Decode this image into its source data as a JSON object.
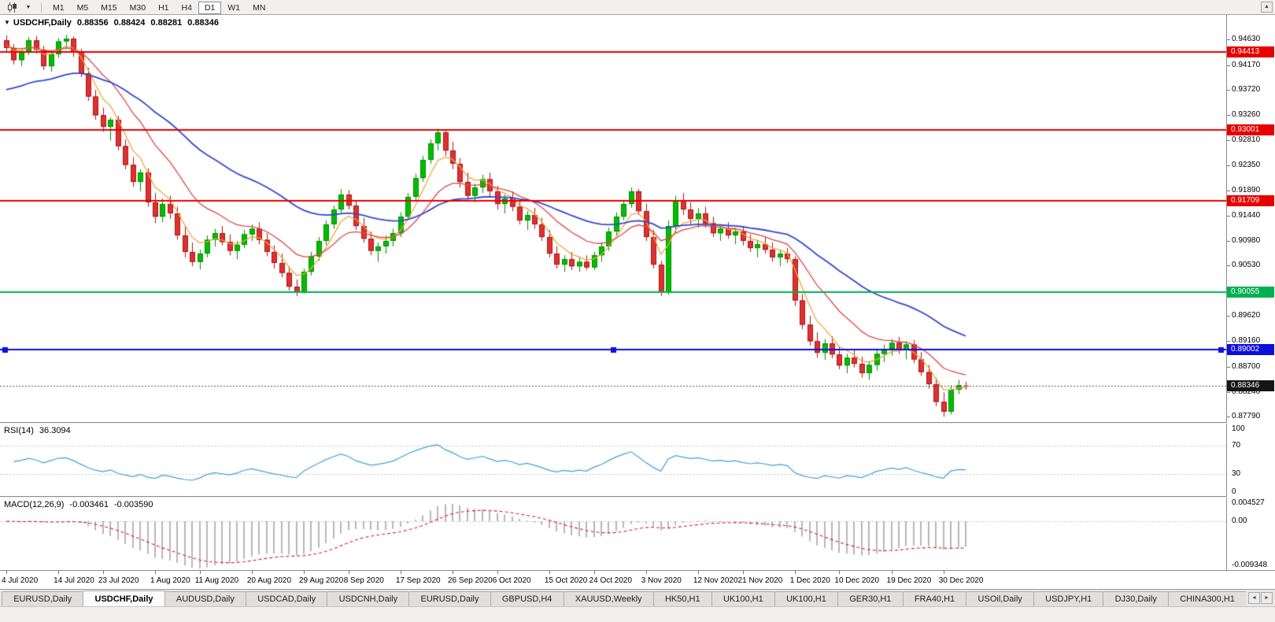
{
  "icons": {
    "collapse_arrow": "▼",
    "dropdown_caret": "▼",
    "scroll_up": "▲",
    "tab_left": "◄",
    "tab_right": "►"
  },
  "toolbar": {
    "timeframes": [
      "M1",
      "M5",
      "M15",
      "M30",
      "H1",
      "H4",
      "D1",
      "W1",
      "MN"
    ],
    "active_timeframe": "D1"
  },
  "header": {
    "symbol": "USDCHF,Daily",
    "open": "0.88356",
    "high": "0.88424",
    "low": "0.88281",
    "close": "0.88346"
  },
  "price_axis": {
    "ticks": [
      "0.94630",
      "0.94170",
      "0.93720",
      "0.93260",
      "0.92810",
      "0.92350",
      "0.91890",
      "0.91440",
      "0.90980",
      "0.90530",
      "0.90070",
      "0.89620",
      "0.89160",
      "0.88700",
      "0.88240",
      "0.87790"
    ]
  },
  "levels": [
    {
      "label": "0.94413",
      "price": 0.94413,
      "color": "#e60000",
      "type": "resistance-line"
    },
    {
      "label": "0.93001",
      "price": 0.93001,
      "color": "#e60000",
      "type": "resistance-line"
    },
    {
      "label": "0.91709",
      "price": 0.91709,
      "color": "#e60000",
      "type": "resistance-line"
    },
    {
      "label": "0.90055",
      "price": 0.90055,
      "color": "#00b050",
      "type": "support-line"
    },
    {
      "label": "0.89002",
      "price": 0.89002,
      "color": "#0d0de0",
      "type": "support-line",
      "selected": true
    }
  ],
  "current_price": {
    "label": "0.88346",
    "price": 0.88346,
    "color": "#151515"
  },
  "time_axis": {
    "dates": [
      "4 Jul 2020",
      "14 Jul 2020",
      "23 Jul 2020",
      "1 Aug 2020",
      "11 Aug 2020",
      "20 Aug 2020",
      "29 Aug 2020",
      "8 Sep 2020",
      "17 Sep 2020",
      "26 Sep 2020",
      "6 Oct 2020",
      "15 Oct 2020",
      "24 Oct 2020",
      "3 Nov 2020",
      "12 Nov 2020",
      "21 Nov 2020",
      "1 Dec 2020",
      "10 Dec 2020",
      "19 Dec 2020",
      "30 Dec 2020"
    ],
    "tick_indices": [
      0,
      7,
      13,
      20,
      26,
      33,
      40,
      46,
      53,
      60,
      66,
      73,
      79,
      86,
      93,
      99,
      106,
      112,
      119,
      126
    ]
  },
  "rsi": {
    "name": "RSI(14)",
    "value": "36.3094",
    "axis_labels": [
      "100",
      "70",
      "30",
      "0"
    ],
    "axis_values": [
      100,
      70,
      30,
      0
    ],
    "levels": [
      70,
      30
    ],
    "line_color": "#42a0dc"
  },
  "macd": {
    "name": "MACD(12,26,9)",
    "value_main": "-0.003461",
    "value_signal": "-0.003590",
    "axis_top": "0.004527",
    "axis_zero": "0.00",
    "axis_bottom": "-0.009348",
    "scale_max": 0.004527,
    "scale_min": -0.009348,
    "bar_color": "#b7b7b7",
    "signal_color": "#e02020"
  },
  "tabs": {
    "items": [
      "EURUSD,Daily",
      "USDCHF,Daily",
      "AUDUSD,Daily",
      "USDCAD,Daily",
      "USDCNH,Daily",
      "EURUSD,Daily",
      "GBPUSD,H4",
      "XAUUSD,Weekly",
      "HK50,H1",
      "UK100,H1",
      "UK100,H1",
      "GER30,H1",
      "FRA40,H1",
      "USOil,Daily",
      "USDJPY,H1",
      "DJ30,Daily",
      "CHINA300,H1"
    ],
    "active_index": 1
  },
  "chart_data": {
    "type": "candlestick",
    "symbol": "USDCHF",
    "period": "Daily",
    "y_range": [
      0.87694,
      0.9508
    ],
    "x_start": 8,
    "x_step": 9.45,
    "up_color": "#00bd00",
    "up_border": "#008f00",
    "down_color": "#e03030",
    "down_border": "#a81616",
    "moving_averages": [
      {
        "name": "ma-fast",
        "period": 5,
        "color": "#eda63c",
        "seed": 0.9455,
        "width": 1.3
      },
      {
        "name": "ma-medium",
        "period": 13,
        "color": "#e04545",
        "seed": 0.9452,
        "width": 1.3
      },
      {
        "name": "ma-slow",
        "period": 34,
        "color": "#3347d1",
        "seed": 0.9368,
        "width": 1.8
      }
    ],
    "indicators": {
      "rsi": {
        "period": 14,
        "current": 36.3094
      },
      "macd": {
        "fast": 12,
        "slow": 26,
        "signal": 9,
        "current_main": -0.003461,
        "current_signal": -0.00359
      }
    },
    "candles": [
      [
        0.9462,
        0.9471,
        0.944,
        0.9448
      ],
      [
        0.9448,
        0.9455,
        0.9418,
        0.9426
      ],
      [
        0.9426,
        0.9446,
        0.9415,
        0.9441
      ],
      [
        0.9441,
        0.9468,
        0.9435,
        0.9462
      ],
      [
        0.9462,
        0.947,
        0.9438,
        0.9445
      ],
      [
        0.9445,
        0.9452,
        0.9408,
        0.9415
      ],
      [
        0.9415,
        0.9442,
        0.9405,
        0.9437
      ],
      [
        0.9437,
        0.9466,
        0.943,
        0.946
      ],
      [
        0.946,
        0.9472,
        0.9446,
        0.9465
      ],
      [
        0.9465,
        0.9469,
        0.9432,
        0.944
      ],
      [
        0.944,
        0.9447,
        0.9395,
        0.9402
      ],
      [
        0.9402,
        0.9412,
        0.9352,
        0.936
      ],
      [
        0.936,
        0.9372,
        0.9318,
        0.9326
      ],
      [
        0.9326,
        0.934,
        0.9296,
        0.9305
      ],
      [
        0.9305,
        0.9322,
        0.928,
        0.9318
      ],
      [
        0.9318,
        0.9325,
        0.9262,
        0.927
      ],
      [
        0.927,
        0.9282,
        0.9228,
        0.9236
      ],
      [
        0.9236,
        0.925,
        0.9196,
        0.9205
      ],
      [
        0.9205,
        0.9228,
        0.9188,
        0.9222
      ],
      [
        0.9222,
        0.923,
        0.916,
        0.9168
      ],
      [
        0.9168,
        0.9185,
        0.913,
        0.9142
      ],
      [
        0.9142,
        0.9175,
        0.9132,
        0.9165
      ],
      [
        0.9165,
        0.918,
        0.9138,
        0.9148
      ],
      [
        0.9148,
        0.916,
        0.91,
        0.9108
      ],
      [
        0.9108,
        0.9125,
        0.9068,
        0.9078
      ],
      [
        0.9078,
        0.9095,
        0.9052,
        0.906
      ],
      [
        0.906,
        0.9082,
        0.9046,
        0.9075
      ],
      [
        0.9075,
        0.9108,
        0.9068,
        0.91
      ],
      [
        0.91,
        0.912,
        0.9088,
        0.9112
      ],
      [
        0.9112,
        0.9125,
        0.909,
        0.9096
      ],
      [
        0.9096,
        0.911,
        0.9072,
        0.908
      ],
      [
        0.908,
        0.9098,
        0.9065,
        0.9091
      ],
      [
        0.9091,
        0.9118,
        0.9085,
        0.911
      ],
      [
        0.911,
        0.9128,
        0.9098,
        0.912
      ],
      [
        0.912,
        0.9132,
        0.9092,
        0.91
      ],
      [
        0.91,
        0.9112,
        0.907,
        0.9078
      ],
      [
        0.9078,
        0.909,
        0.9048,
        0.9058
      ],
      [
        0.9058,
        0.9075,
        0.9032,
        0.904
      ],
      [
        0.904,
        0.9052,
        0.9008,
        0.9015
      ],
      [
        0.9015,
        0.9028,
        0.8998,
        0.9005
      ],
      [
        0.9005,
        0.9048,
        0.9002,
        0.9042
      ],
      [
        0.9042,
        0.9078,
        0.9035,
        0.907
      ],
      [
        0.907,
        0.9105,
        0.9062,
        0.9098
      ],
      [
        0.9098,
        0.9135,
        0.909,
        0.9128
      ],
      [
        0.9128,
        0.9162,
        0.912,
        0.9155
      ],
      [
        0.9155,
        0.9192,
        0.9148,
        0.9182
      ],
      [
        0.9182,
        0.919,
        0.9155,
        0.9162
      ],
      [
        0.9162,
        0.917,
        0.9118,
        0.9125
      ],
      [
        0.9125,
        0.914,
        0.9095,
        0.9102
      ],
      [
        0.9102,
        0.9115,
        0.9072,
        0.908
      ],
      [
        0.908,
        0.9095,
        0.906,
        0.9088
      ],
      [
        0.9088,
        0.9108,
        0.9075,
        0.9098
      ],
      [
        0.9098,
        0.912,
        0.9088,
        0.9112
      ],
      [
        0.9112,
        0.915,
        0.9105,
        0.9142
      ],
      [
        0.9142,
        0.9185,
        0.9135,
        0.9178
      ],
      [
        0.9178,
        0.922,
        0.917,
        0.9212
      ],
      [
        0.9212,
        0.9252,
        0.9205,
        0.9245
      ],
      [
        0.9245,
        0.9282,
        0.9238,
        0.9275
      ],
      [
        0.9275,
        0.9302,
        0.9262,
        0.9295
      ],
      [
        0.9295,
        0.93,
        0.9252,
        0.9262
      ],
      [
        0.9262,
        0.9278,
        0.9228,
        0.9238
      ],
      [
        0.9238,
        0.9248,
        0.9195,
        0.9205
      ],
      [
        0.9205,
        0.9222,
        0.9172,
        0.918
      ],
      [
        0.918,
        0.9202,
        0.9168,
        0.9195
      ],
      [
        0.9195,
        0.9218,
        0.9185,
        0.921
      ],
      [
        0.921,
        0.9222,
        0.9178,
        0.9188
      ],
      [
        0.9188,
        0.9198,
        0.9155,
        0.9165
      ],
      [
        0.9165,
        0.9182,
        0.9148,
        0.9175
      ],
      [
        0.9175,
        0.9188,
        0.9152,
        0.916
      ],
      [
        0.916,
        0.9172,
        0.9128,
        0.9135
      ],
      [
        0.9135,
        0.9152,
        0.9118,
        0.9145
      ],
      [
        0.9145,
        0.9158,
        0.912,
        0.9128
      ],
      [
        0.9128,
        0.914,
        0.9098,
        0.9105
      ],
      [
        0.9105,
        0.9118,
        0.9068,
        0.9075
      ],
      [
        0.9075,
        0.9088,
        0.9048,
        0.9055
      ],
      [
        0.9055,
        0.9072,
        0.9042,
        0.9065
      ],
      [
        0.9065,
        0.9078,
        0.9045,
        0.9052
      ],
      [
        0.9052,
        0.9068,
        0.9042,
        0.906
      ],
      [
        0.906,
        0.9072,
        0.9045,
        0.905
      ],
      [
        0.905,
        0.9078,
        0.9045,
        0.9072
      ],
      [
        0.9072,
        0.9095,
        0.906,
        0.9088
      ],
      [
        0.9088,
        0.9122,
        0.908,
        0.9115
      ],
      [
        0.9115,
        0.915,
        0.9108,
        0.9142
      ],
      [
        0.9142,
        0.9172,
        0.9135,
        0.9165
      ],
      [
        0.9165,
        0.9195,
        0.9158,
        0.9188
      ],
      [
        0.9188,
        0.9192,
        0.9145,
        0.9152
      ],
      [
        0.9152,
        0.9165,
        0.9098,
        0.9105
      ],
      [
        0.9105,
        0.9118,
        0.9048,
        0.9055
      ],
      [
        0.9055,
        0.9062,
        0.8998,
        0.9005
      ],
      [
        0.9005,
        0.9135,
        0.9,
        0.9125
      ],
      [
        0.9125,
        0.918,
        0.9112,
        0.9172
      ],
      [
        0.9172,
        0.9185,
        0.9145,
        0.9155
      ],
      [
        0.9155,
        0.9168,
        0.9128,
        0.9138
      ],
      [
        0.9138,
        0.9158,
        0.9122,
        0.9148
      ],
      [
        0.9148,
        0.916,
        0.9122,
        0.913
      ],
      [
        0.913,
        0.9142,
        0.9105,
        0.9112
      ],
      [
        0.9112,
        0.9128,
        0.9098,
        0.912
      ],
      [
        0.912,
        0.9132,
        0.9102,
        0.9108
      ],
      [
        0.9108,
        0.9122,
        0.9092,
        0.9115
      ],
      [
        0.9115,
        0.9125,
        0.909,
        0.9098
      ],
      [
        0.9098,
        0.911,
        0.9078,
        0.9085
      ],
      [
        0.9085,
        0.91,
        0.9068,
        0.9092
      ],
      [
        0.9092,
        0.9105,
        0.9075,
        0.9082
      ],
      [
        0.9082,
        0.9095,
        0.906,
        0.9068
      ],
      [
        0.9068,
        0.9082,
        0.9052,
        0.9075
      ],
      [
        0.9075,
        0.9085,
        0.9058,
        0.9065
      ],
      [
        0.9065,
        0.907,
        0.898,
        0.899
      ],
      [
        0.899,
        0.9002,
        0.8938,
        0.8946
      ],
      [
        0.8946,
        0.8962,
        0.8908,
        0.8916
      ],
      [
        0.8916,
        0.8932,
        0.8886,
        0.8895
      ],
      [
        0.8895,
        0.892,
        0.8882,
        0.8912
      ],
      [
        0.8912,
        0.8925,
        0.8885,
        0.8892
      ],
      [
        0.8892,
        0.8906,
        0.8865,
        0.8872
      ],
      [
        0.8872,
        0.8893,
        0.8858,
        0.8886
      ],
      [
        0.8886,
        0.8902,
        0.8868,
        0.8875
      ],
      [
        0.8875,
        0.8888,
        0.885,
        0.8858
      ],
      [
        0.8858,
        0.888,
        0.8846,
        0.8873
      ],
      [
        0.8873,
        0.89,
        0.8863,
        0.8893
      ],
      [
        0.8893,
        0.891,
        0.8878,
        0.8902
      ],
      [
        0.8902,
        0.892,
        0.889,
        0.8913
      ],
      [
        0.8913,
        0.8924,
        0.8893,
        0.89
      ],
      [
        0.89,
        0.8916,
        0.8883,
        0.891
      ],
      [
        0.891,
        0.8918,
        0.8876,
        0.8883
      ],
      [
        0.8883,
        0.8896,
        0.8853,
        0.886
      ],
      [
        0.886,
        0.8873,
        0.883,
        0.8838
      ],
      [
        0.8838,
        0.885,
        0.8798,
        0.8806
      ],
      [
        0.8806,
        0.8823,
        0.8779,
        0.8788
      ],
      [
        0.8788,
        0.8836,
        0.8783,
        0.8828
      ],
      [
        0.8828,
        0.8846,
        0.882,
        0.8836
      ],
      [
        0.88356,
        0.88424,
        0.88281,
        0.88346
      ]
    ]
  }
}
